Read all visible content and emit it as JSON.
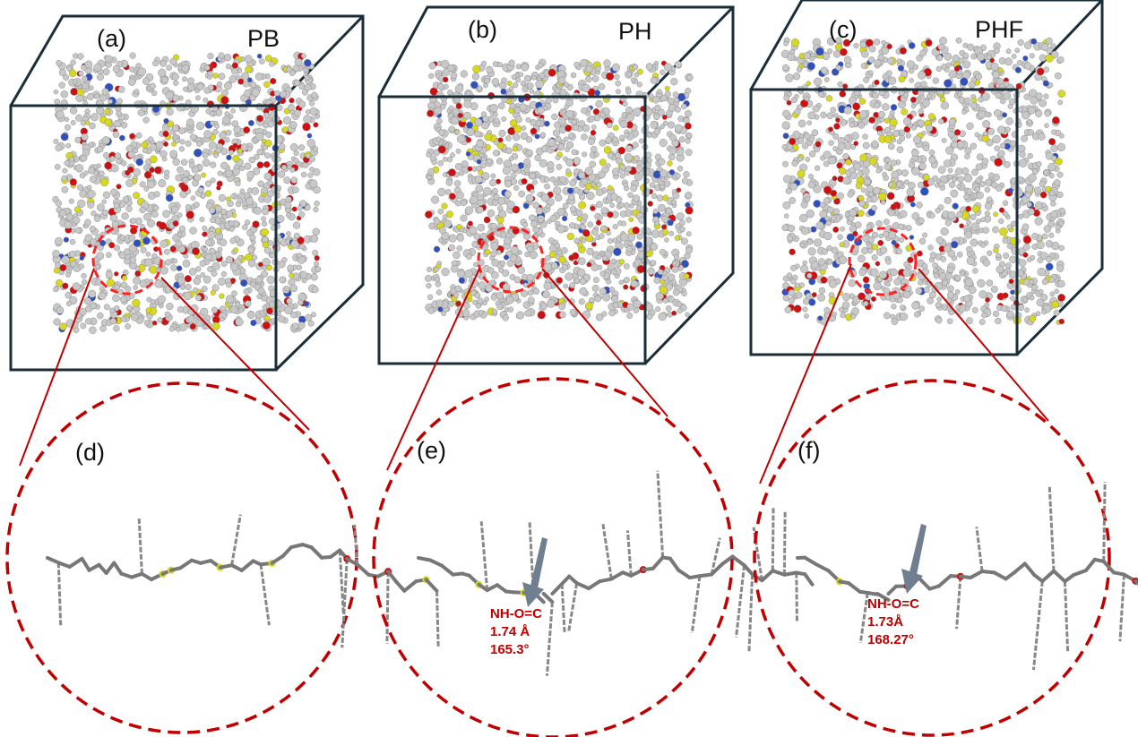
{
  "panels": [
    {
      "tag": "(a)",
      "name": "PB"
    },
    {
      "tag": "(b)",
      "name": "PH"
    },
    {
      "tag": "(c)",
      "name": "PHF"
    }
  ],
  "zooms": [
    {
      "tag": "(d)"
    },
    {
      "tag": "(e)",
      "bond": "NH-O=C",
      "distance": "1.74 Å",
      "angle": "165.3°"
    },
    {
      "tag": "(f)",
      "bond": "NH-O=C",
      "distance": "1.73Å",
      "angle": "168.27°"
    }
  ],
  "colors": {
    "box": "#1a2e3a",
    "highlight": "#c00000",
    "carbon": "#c8c8c8",
    "oxygen": "#d01010",
    "sulfur": "#d8d820",
    "nitrogen": "#3050c0",
    "arrow": "#6f7f8f"
  }
}
